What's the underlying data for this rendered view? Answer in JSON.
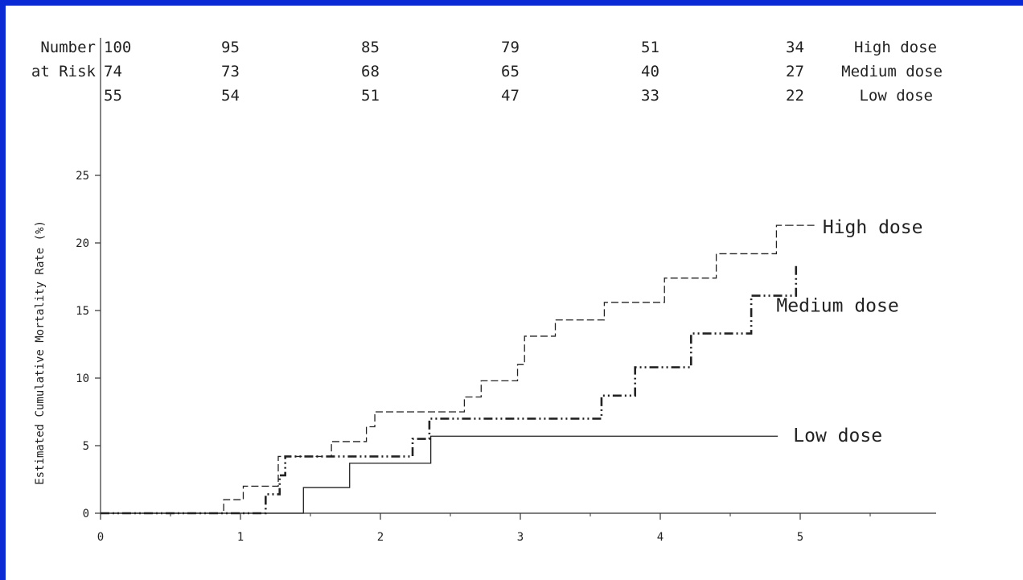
{
  "chart_data": {
    "type": "line",
    "step": true,
    "ylabel": "Estimated Cumulative Mortality Rate (%)",
    "xlabel": "",
    "xlim": [
      0,
      6
    ],
    "ylim": [
      0,
      25
    ],
    "x_ticks": [
      0,
      1,
      2,
      3,
      4,
      5
    ],
    "y_ticks": [
      0,
      5,
      10,
      15,
      20,
      25
    ],
    "grid": false,
    "series": [
      {
        "name": "High dose",
        "style": "dashed",
        "x": [
          0,
          0.88,
          1.02,
          1.27,
          1.65,
          1.9,
          1.96,
          2.6,
          2.72,
          2.98,
          3.03,
          3.25,
          3.6,
          4.03,
          4.4,
          4.83,
          4.9
        ],
        "y": [
          0,
          1.0,
          2.0,
          4.2,
          5.3,
          6.4,
          7.5,
          8.6,
          9.8,
          11.0,
          13.1,
          14.3,
          15.6,
          17.4,
          19.2,
          21.3,
          21.3
        ]
      },
      {
        "name": "Medium dose",
        "style": "dash-dot-dot",
        "x": [
          0,
          1.18,
          1.24,
          1.28,
          1.32,
          2.23,
          2.3,
          2.35,
          3.58,
          3.82,
          4.22,
          4.65,
          4.95,
          4.97
        ],
        "y": [
          0,
          1.4,
          1.4,
          2.8,
          4.2,
          5.5,
          5.5,
          7.0,
          8.7,
          10.8,
          13.3,
          16.1,
          16.1,
          18.5
        ]
      },
      {
        "name": "Low dose",
        "style": "solid",
        "x": [
          0,
          1.45,
          1.78,
          2.36,
          4.84
        ],
        "y": [
          0,
          1.9,
          3.7,
          5.7,
          5.7
        ]
      }
    ],
    "number_at_risk": {
      "label_line1": "Number",
      "label_line2": "at Risk",
      "x": [
        0,
        1,
        2,
        3,
        4,
        5
      ],
      "rows": [
        {
          "group": "High dose",
          "values": [
            "100",
            "95",
            "85",
            "79",
            "51",
            "34"
          ]
        },
        {
          "group": "Medium dose",
          "values": [
            "74",
            "73",
            "68",
            "65",
            "40",
            "27"
          ]
        },
        {
          "group": "Low dose",
          "values": [
            "55",
            "54",
            "51",
            "47",
            "33",
            "22"
          ]
        }
      ]
    }
  }
}
